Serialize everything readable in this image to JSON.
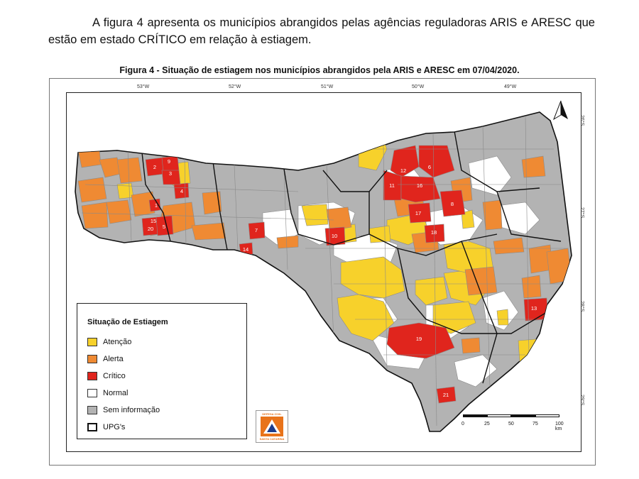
{
  "intro_text": "A figura 4 apresenta os municípios abrangidos pelas agências reguladoras ARIS e ARESC que estão em estado CRÍTICO em relação à estiagem.",
  "figure_title": "Figura 4 - Situação de estiagem nos municípios abrangidos pela ARIS e ARESC em 07/04/2020.",
  "map": {
    "longitude_labels": [
      "53°W",
      "52°W",
      "51°W",
      "50°W",
      "49°W"
    ],
    "latitude_labels": [
      "26°S",
      "27°S",
      "28°S",
      "29°S"
    ],
    "critical_labels": [
      "1",
      "2",
      "3",
      "4",
      "5",
      "6",
      "7",
      "8",
      "9",
      "10",
      "11",
      "12",
      "13",
      "14",
      "15",
      "16",
      "17",
      "18",
      "19",
      "20",
      "21"
    ],
    "colors": {
      "atencao": "#f7d12b",
      "alerta": "#ef8a33",
      "critico": "#e0251d",
      "normal": "#ffffff",
      "sem_informacao": "#b3b3b3",
      "upg_border": "#111111",
      "municipal_border": "#8a8a8a"
    }
  },
  "legend": {
    "title": "Situação de Estiagem",
    "items": [
      {
        "label": "Atenção",
        "color": "#f7d12b"
      },
      {
        "label": "Alerta",
        "color": "#ef8a33"
      },
      {
        "label": "Crítico",
        "color": "#e0251d"
      },
      {
        "label": "Normal",
        "color": "#ffffff"
      },
      {
        "label": "Sem informação",
        "color": "#b3b3b3"
      },
      {
        "label": "UPG's",
        "color": "#ffffff"
      }
    ]
  },
  "logo": {
    "line1": "DEFESA CIVIL",
    "line2": "SANTA CATARINA"
  },
  "scale": {
    "labels": [
      "0",
      "25",
      "50",
      "75",
      "100 km"
    ]
  }
}
